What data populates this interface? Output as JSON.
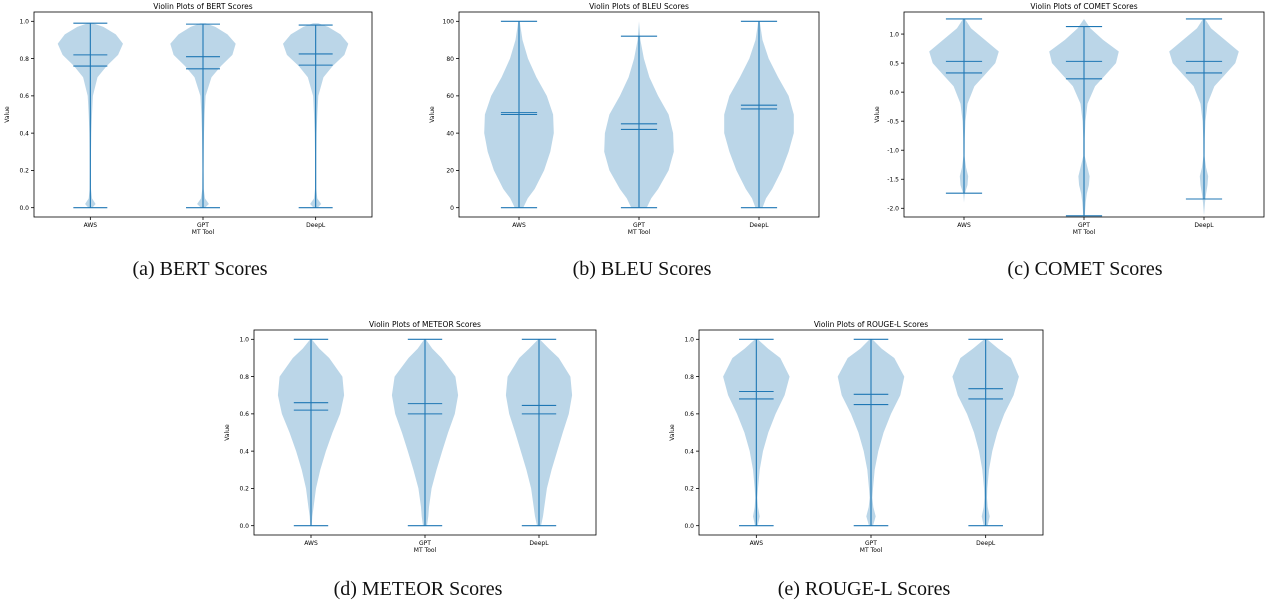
{
  "chart_data": [
    {
      "type": "violin",
      "title": "Violin Plots of BERT Scores",
      "xlabel": "MT Tool",
      "ylabel": "Value",
      "categories": [
        "AWS",
        "GPT",
        "DeepL"
      ],
      "yticks": [
        0.0,
        0.2,
        0.4,
        0.6,
        0.8,
        1.0
      ],
      "ytick_labels": [
        "0.0",
        "0.2",
        "0.4",
        "0.6",
        "0.8",
        "1.0"
      ],
      "ylim": [
        -0.05,
        1.05
      ],
      "min": [
        0.0,
        0.0,
        0.0
      ],
      "max": [
        0.99,
        0.985,
        0.98
      ],
      "mean": [
        0.76,
        0.745,
        0.765
      ],
      "median": [
        0.82,
        0.81,
        0.825
      ],
      "density_y": [
        0.0,
        0.02,
        0.05,
        0.1,
        0.2,
        0.3,
        0.4,
        0.5,
        0.6,
        0.7,
        0.76,
        0.82,
        0.88,
        0.93,
        0.97,
        0.99
      ],
      "density_w": [
        [
          0.06,
          0.16,
          0.05,
          0.02,
          0.015,
          0.02,
          0.03,
          0.05,
          0.08,
          0.22,
          0.5,
          0.85,
          1.0,
          0.78,
          0.4,
          0.08
        ],
        [
          0.06,
          0.18,
          0.06,
          0.02,
          0.015,
          0.02,
          0.03,
          0.05,
          0.08,
          0.26,
          0.55,
          0.9,
          1.0,
          0.75,
          0.38,
          0.08
        ],
        [
          0.06,
          0.17,
          0.05,
          0.02,
          0.015,
          0.02,
          0.03,
          0.05,
          0.08,
          0.24,
          0.52,
          0.88,
          1.0,
          0.76,
          0.38,
          0.08
        ]
      ],
      "caption": "(a) BERT Scores"
    },
    {
      "type": "violin",
      "title": "Violin Plots of BLEU Scores",
      "xlabel": "MT Tool",
      "ylabel": "Value",
      "categories": [
        "AWS",
        "GPT",
        "DeepL"
      ],
      "yticks": [
        0,
        20,
        40,
        60,
        80,
        100
      ],
      "ytick_labels": [
        "0",
        "20",
        "40",
        "60",
        "80",
        "100"
      ],
      "ylim": [
        -5,
        105
      ],
      "min": [
        0,
        0,
        0
      ],
      "max": [
        100,
        92,
        100
      ],
      "mean": [
        50,
        42,
        53
      ],
      "median": [
        51,
        45,
        55
      ],
      "density_y": [
        0,
        5,
        10,
        20,
        30,
        40,
        50,
        60,
        70,
        80,
        90,
        100
      ],
      "density_w": [
        [
          0.12,
          0.25,
          0.45,
          0.72,
          0.9,
          1.0,
          0.98,
          0.8,
          0.5,
          0.26,
          0.1,
          0.02
        ],
        [
          0.22,
          0.35,
          0.55,
          0.85,
          1.0,
          0.98,
          0.85,
          0.55,
          0.3,
          0.14,
          0.04,
          0.0
        ],
        [
          0.1,
          0.2,
          0.38,
          0.65,
          0.85,
          1.0,
          1.0,
          0.85,
          0.55,
          0.28,
          0.1,
          0.02
        ]
      ],
      "caption": "(b) BLEU Scores"
    },
    {
      "type": "violin",
      "title": "Violin Plots of COMET Scores",
      "xlabel": "MT Tool",
      "ylabel": "Value",
      "categories": [
        "AWS",
        "GPT",
        "DeepL"
      ],
      "yticks": [
        -2.0,
        -1.5,
        -1.0,
        -0.5,
        0.0,
        0.5,
        1.0
      ],
      "ytick_labels": [
        "-2.0",
        "-1.5",
        "-1.0",
        "-0.5",
        "0.0",
        "0.5",
        "1.0"
      ],
      "ylim": [
        -2.15,
        1.38
      ],
      "min": [
        -1.74,
        -2.13,
        -1.84
      ],
      "max": [
        1.26,
        1.13,
        1.26
      ],
      "mean": [
        0.33,
        0.23,
        0.33
      ],
      "median": [
        0.53,
        0.53,
        0.53
      ],
      "density_y": [
        -2.13,
        -1.9,
        -1.75,
        -1.6,
        -1.45,
        -1.3,
        -1.1,
        -0.8,
        -0.5,
        -0.2,
        0.1,
        0.3,
        0.5,
        0.7,
        0.9,
        1.1,
        1.26
      ],
      "density_w": [
        [
          0.0,
          0.0,
          0.02,
          0.1,
          0.12,
          0.06,
          0.015,
          0.02,
          0.04,
          0.1,
          0.3,
          0.6,
          0.9,
          1.0,
          0.6,
          0.2,
          0.03
        ],
        [
          0.02,
          0.05,
          0.08,
          0.14,
          0.16,
          0.1,
          0.02,
          0.02,
          0.04,
          0.1,
          0.32,
          0.62,
          0.92,
          1.0,
          0.55,
          0.18,
          0.0
        ],
        [
          0.0,
          0.03,
          0.06,
          0.1,
          0.12,
          0.06,
          0.015,
          0.02,
          0.04,
          0.1,
          0.3,
          0.6,
          0.9,
          1.0,
          0.6,
          0.2,
          0.03
        ]
      ],
      "caption": "(c) COMET Scores"
    },
    {
      "type": "violin",
      "title": "Violin Plots of METEOR Scores",
      "xlabel": "MT Tool",
      "ylabel": "Value",
      "categories": [
        "AWS",
        "GPT",
        "DeepL"
      ],
      "yticks": [
        0.0,
        0.2,
        0.4,
        0.6,
        0.8,
        1.0
      ],
      "ytick_labels": [
        "0.0",
        "0.2",
        "0.4",
        "0.6",
        "0.8",
        "1.0"
      ],
      "ylim": [
        -0.05,
        1.05
      ],
      "min": [
        0.0,
        0.0,
        0.0
      ],
      "max": [
        1.0,
        1.0,
        1.0
      ],
      "mean": [
        0.62,
        0.6,
        0.6
      ],
      "median": [
        0.66,
        0.655,
        0.645
      ],
      "density_y": [
        0.0,
        0.05,
        0.1,
        0.2,
        0.3,
        0.4,
        0.5,
        0.6,
        0.7,
        0.8,
        0.9,
        0.95,
        1.0
      ],
      "density_w": [
        [
          0.02,
          0.04,
          0.08,
          0.15,
          0.28,
          0.45,
          0.65,
          0.88,
          1.0,
          0.95,
          0.55,
          0.25,
          0.02
        ],
        [
          0.06,
          0.1,
          0.12,
          0.2,
          0.35,
          0.52,
          0.7,
          0.9,
          1.0,
          0.92,
          0.5,
          0.22,
          0.02
        ],
        [
          0.06,
          0.12,
          0.16,
          0.24,
          0.38,
          0.55,
          0.72,
          0.9,
          1.0,
          0.95,
          0.6,
          0.3,
          0.02
        ]
      ],
      "caption": "(d) METEOR Scores"
    },
    {
      "type": "violin",
      "title": "Violin Plots of ROUGE-L Scores",
      "xlabel": "MT Tool",
      "ylabel": "Value",
      "categories": [
        "AWS",
        "GPT",
        "DeepL"
      ],
      "yticks": [
        0.0,
        0.2,
        0.4,
        0.6,
        0.8,
        1.0
      ],
      "ytick_labels": [
        "0.0",
        "0.2",
        "0.4",
        "0.6",
        "0.8",
        "1.0"
      ],
      "ylim": [
        -0.05,
        1.05
      ],
      "min": [
        0.0,
        0.0,
        0.0
      ],
      "max": [
        1.0,
        1.0,
        1.0
      ],
      "mean": [
        0.68,
        0.65,
        0.68
      ],
      "median": [
        0.72,
        0.705,
        0.735
      ],
      "density_y": [
        0.0,
        0.05,
        0.1,
        0.15,
        0.2,
        0.3,
        0.4,
        0.5,
        0.6,
        0.7,
        0.8,
        0.9,
        0.95,
        1.0
      ],
      "density_w": [
        [
          0.04,
          0.1,
          0.05,
          0.03,
          0.05,
          0.1,
          0.2,
          0.36,
          0.58,
          0.85,
          1.0,
          0.72,
          0.35,
          0.04
        ],
        [
          0.06,
          0.14,
          0.07,
          0.04,
          0.06,
          0.11,
          0.22,
          0.38,
          0.6,
          0.88,
          1.0,
          0.7,
          0.32,
          0.04
        ],
        [
          0.06,
          0.12,
          0.06,
          0.04,
          0.05,
          0.1,
          0.2,
          0.35,
          0.56,
          0.84,
          1.0,
          0.76,
          0.38,
          0.04
        ]
      ],
      "caption": "(e) ROUGE-L Scores"
    }
  ],
  "colors": {
    "fill": "#1f77b4",
    "fill_opacity": 0.3,
    "line": "#1f77b4",
    "axis": "#000000"
  }
}
